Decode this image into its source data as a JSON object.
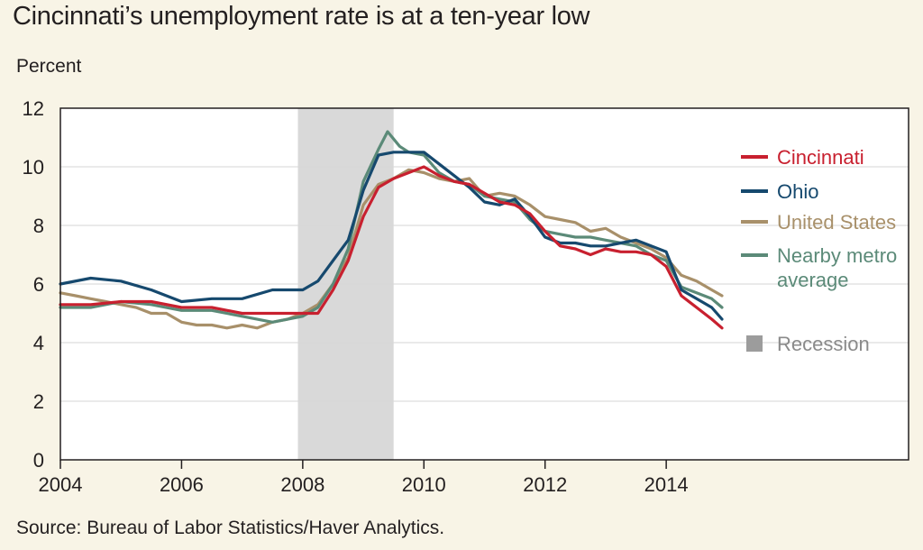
{
  "title": "Cincinnati’s unemployment rate is at a ten-year low",
  "source": "Source: Bureau of Labor Statistics/Haver Analytics.",
  "chart_data": {
    "type": "line",
    "title": "Cincinnati’s unemployment rate is at a ten-year low",
    "xlabel": "",
    "ylabel": "Percent",
    "xlim": [
      2004,
      2018
    ],
    "ylim": [
      0,
      12
    ],
    "xticks": [
      2004,
      2006,
      2008,
      2010,
      2012,
      2014
    ],
    "yticks": [
      0,
      2,
      4,
      6,
      8,
      10,
      12
    ],
    "grid": true,
    "legend_position": "right",
    "recession": {
      "label": "Recession",
      "start": 2007.92,
      "end": 2009.5,
      "color": "#d9d9d9"
    },
    "series": [
      {
        "name": "Cincinnati",
        "color": "#c8202f",
        "x": [
          2004,
          2004.5,
          2005,
          2005.5,
          2006,
          2006.5,
          2007,
          2007.5,
          2008,
          2008.25,
          2008.5,
          2008.75,
          2009,
          2009.25,
          2009.5,
          2009.75,
          2010,
          2010.25,
          2010.5,
          2010.75,
          2011,
          2011.25,
          2011.5,
          2011.75,
          2012,
          2012.25,
          2012.5,
          2012.75,
          2013,
          2013.25,
          2013.5,
          2013.75,
          2014,
          2014.25,
          2014.5,
          2014.75,
          2014.92
        ],
        "y": [
          5.3,
          5.3,
          5.4,
          5.4,
          5.2,
          5.2,
          5.0,
          5.0,
          5.0,
          5.0,
          5.8,
          6.8,
          8.3,
          9.3,
          9.6,
          9.8,
          10.0,
          9.7,
          9.5,
          9.4,
          9.1,
          8.8,
          8.7,
          8.4,
          7.8,
          7.3,
          7.2,
          7.0,
          7.2,
          7.1,
          7.1,
          7.0,
          6.6,
          5.6,
          5.2,
          4.8,
          4.5
        ]
      },
      {
        "name": "Ohio",
        "color": "#16496e",
        "x": [
          2004,
          2004.5,
          2005,
          2005.5,
          2006,
          2006.5,
          2007,
          2007.5,
          2008,
          2008.25,
          2008.5,
          2008.75,
          2009,
          2009.25,
          2009.5,
          2009.75,
          2010,
          2010.25,
          2010.5,
          2010.75,
          2011,
          2011.25,
          2011.5,
          2011.75,
          2012,
          2012.25,
          2012.5,
          2012.75,
          2013,
          2013.25,
          2013.5,
          2013.75,
          2014,
          2014.25,
          2014.5,
          2014.75,
          2014.92
        ],
        "y": [
          6.0,
          6.2,
          6.1,
          5.8,
          5.4,
          5.5,
          5.5,
          5.8,
          5.8,
          6.1,
          6.8,
          7.5,
          9.2,
          10.4,
          10.5,
          10.5,
          10.5,
          10.1,
          9.7,
          9.3,
          8.8,
          8.7,
          8.9,
          8.3,
          7.6,
          7.4,
          7.4,
          7.3,
          7.3,
          7.4,
          7.5,
          7.3,
          7.1,
          5.8,
          5.5,
          5.2,
          4.8
        ]
      },
      {
        "name": "United States",
        "color": "#a8906a",
        "x": [
          2004,
          2004.25,
          2004.5,
          2004.75,
          2005,
          2005.25,
          2005.5,
          2005.75,
          2006,
          2006.25,
          2006.5,
          2006.75,
          2007,
          2007.25,
          2007.5,
          2007.75,
          2008,
          2008.25,
          2008.5,
          2008.75,
          2009,
          2009.25,
          2009.5,
          2009.75,
          2010,
          2010.25,
          2010.5,
          2010.75,
          2011,
          2011.25,
          2011.5,
          2011.75,
          2012,
          2012.25,
          2012.5,
          2012.75,
          2013,
          2013.25,
          2013.5,
          2013.75,
          2014,
          2014.25,
          2014.5,
          2014.75,
          2014.92
        ],
        "y": [
          5.7,
          5.6,
          5.5,
          5.4,
          5.3,
          5.2,
          5.0,
          5.0,
          4.7,
          4.6,
          4.6,
          4.5,
          4.6,
          4.5,
          4.7,
          4.8,
          5.0,
          5.3,
          6.0,
          6.9,
          8.7,
          9.4,
          9.6,
          9.9,
          9.8,
          9.6,
          9.5,
          9.6,
          9.0,
          9.1,
          9.0,
          8.7,
          8.3,
          8.2,
          8.1,
          7.8,
          7.9,
          7.6,
          7.4,
          7.2,
          6.9,
          6.3,
          6.1,
          5.8,
          5.6
        ]
      },
      {
        "name": "Nearby metro average",
        "color": "#5b8a78",
        "x": [
          2004,
          2004.5,
          2005,
          2005.5,
          2006,
          2006.5,
          2007,
          2007.5,
          2008,
          2008.25,
          2008.5,
          2008.75,
          2009,
          2009.25,
          2009.4,
          2009.6,
          2009.75,
          2010,
          2010.25,
          2010.5,
          2010.75,
          2011,
          2011.25,
          2011.5,
          2011.75,
          2012,
          2012.25,
          2012.5,
          2012.75,
          2013,
          2013.25,
          2013.5,
          2013.75,
          2014,
          2014.25,
          2014.5,
          2014.75,
          2014.92
        ],
        "y": [
          5.2,
          5.2,
          5.4,
          5.3,
          5.1,
          5.1,
          4.9,
          4.7,
          4.9,
          5.2,
          6.0,
          7.2,
          9.5,
          10.6,
          11.2,
          10.7,
          10.5,
          10.4,
          9.8,
          9.5,
          9.4,
          9.0,
          8.9,
          8.8,
          8.2,
          7.8,
          7.7,
          7.6,
          7.6,
          7.5,
          7.4,
          7.3,
          7.0,
          6.8,
          5.9,
          5.7,
          5.5,
          5.2
        ]
      }
    ]
  }
}
